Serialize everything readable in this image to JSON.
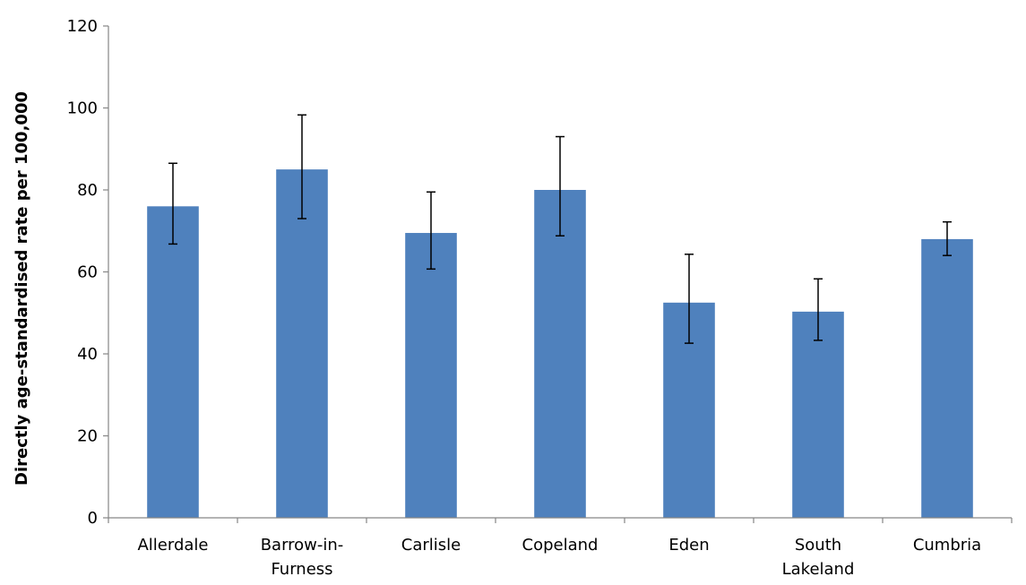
{
  "chart_data": {
    "type": "bar",
    "title": "",
    "xlabel": "",
    "ylabel": "Directly age-standardised rate per 100,000",
    "ylim": [
      0,
      120
    ],
    "yticks": [
      0,
      20,
      40,
      60,
      80,
      100,
      120
    ],
    "categories": [
      "Allerdale",
      "Barrow-in-Furness",
      "Carlisle",
      "Copeland",
      "Eden",
      "South Lakeland",
      "Cumbria"
    ],
    "category_lines": [
      [
        "Allerdale"
      ],
      [
        "Barrow-in-",
        "Furness"
      ],
      [
        "Carlisle"
      ],
      [
        "Copeland"
      ],
      [
        "Eden"
      ],
      [
        "South",
        "Lakeland"
      ],
      [
        "Cumbria"
      ]
    ],
    "values": [
      76,
      85,
      69.5,
      80,
      52.5,
      50.3,
      68
    ],
    "error_low": [
      66.8,
      73,
      60.7,
      68.8,
      42.6,
      43.3,
      64
    ],
    "error_high": [
      86.5,
      98.3,
      79.5,
      93,
      64.3,
      58.3,
      72.2
    ],
    "bar_color": "#4f81bd",
    "grid": false,
    "legend": "none"
  }
}
